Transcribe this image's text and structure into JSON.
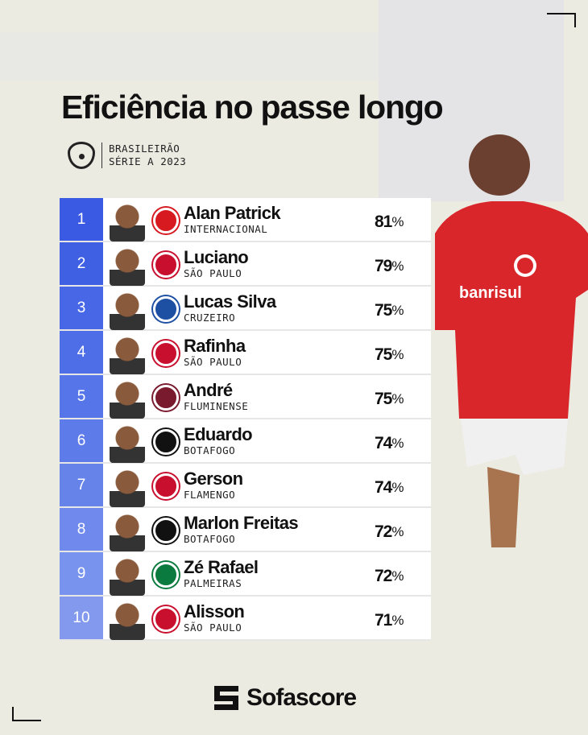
{
  "title": "Eficiência no passe longo",
  "league": {
    "line1": "BRASILEIRÃO",
    "line2": "SÉRIE A 2023",
    "icon": "brasileirao-logo"
  },
  "rows": [
    {
      "rank": "1",
      "name": "Alan Patrick",
      "team": "INTERNACIONAL",
      "value": "81",
      "unit": "%",
      "crest": "#d71920",
      "rank_color": "#3a5ae4"
    },
    {
      "rank": "2",
      "name": "Luciano",
      "team": "SÃO PAULO",
      "value": "79",
      "unit": "%",
      "crest": "#c8102e",
      "rank_color": "#4060e4"
    },
    {
      "rank": "3",
      "name": "Lucas Silva",
      "team": "CRUZEIRO",
      "value": "75",
      "unit": "%",
      "crest": "#1d4fa3",
      "rank_color": "#4767e6"
    },
    {
      "rank": "4",
      "name": "Rafinha",
      "team": "SÃO PAULO",
      "value": "75",
      "unit": "%",
      "crest": "#c8102e",
      "rank_color": "#4e6ee7"
    },
    {
      "rank": "5",
      "name": "André",
      "team": "FLUMINENSE",
      "value": "75",
      "unit": "%",
      "crest": "#7a1a2e",
      "rank_color": "#5675e8"
    },
    {
      "rank": "6",
      "name": "Eduardo",
      "team": "BOTAFOGO",
      "value": "74",
      "unit": "%",
      "crest": "#111111",
      "rank_color": "#5e7ce9"
    },
    {
      "rank": "7",
      "name": "Gerson",
      "team": "FLAMENGO",
      "value": "74",
      "unit": "%",
      "crest": "#c8102e",
      "rank_color": "#6683ea"
    },
    {
      "rank": "8",
      "name": "Marlon Freitas",
      "team": "BOTAFOGO",
      "value": "72",
      "unit": "%",
      "crest": "#111111",
      "rank_color": "#6f8aec"
    },
    {
      "rank": "9",
      "name": "Zé Rafael",
      "team": "PALMEIRAS",
      "value": "72",
      "unit": "%",
      "crest": "#0b7a3e",
      "rank_color": "#7893ed"
    },
    {
      "rank": "10",
      "name": "Alisson",
      "team": "SÃO PAULO",
      "value": "71",
      "unit": "%",
      "crest": "#c8102e",
      "rank_color": "#8399ee"
    }
  ],
  "brand": "Sofascore",
  "hero": {
    "sponsor": "banrisul",
    "kit_color": "#d8262b"
  }
}
